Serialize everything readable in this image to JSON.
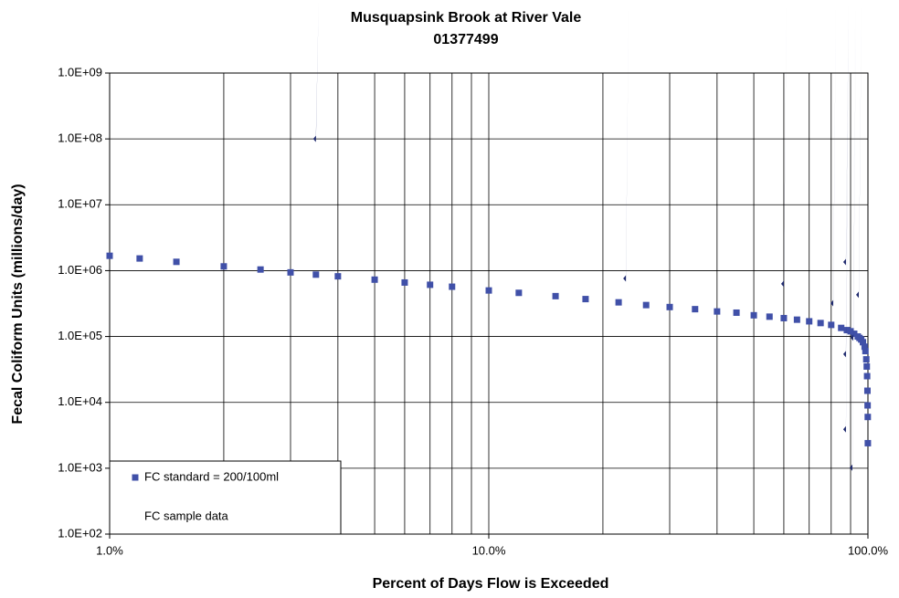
{
  "chart_data": {
    "type": "scatter",
    "title": "Musquapsink Brook at River Vale",
    "subtitle": "01377499",
    "x_label": "Percent of Days Flow is Exceeded",
    "y_label": "Fecal Coliform Units (millions/day)",
    "x_log": true,
    "y_log": true,
    "grid": true,
    "legend": "lower left",
    "xlim": [
      1,
      100
    ],
    "ylim": [
      100,
      1000000000
    ],
    "xticks": [
      {
        "value": 1,
        "label": "1.0%"
      },
      {
        "value": 10,
        "label": "10.0%"
      },
      {
        "value": 100,
        "label": "100.0%"
      }
    ],
    "yticks": [
      {
        "value": 100,
        "label": "1.0E+02"
      },
      {
        "value": 1000,
        "label": "1.0E+03"
      },
      {
        "value": 10000,
        "label": "1.0E+04"
      },
      {
        "value": 100000,
        "label": "1.0E+05"
      },
      {
        "value": 1000000,
        "label": "1.0E+06"
      },
      {
        "value": 10000000,
        "label": "1.0E+07"
      },
      {
        "value": 100000000,
        "label": "1.0E+08"
      },
      {
        "value": 1000000000,
        "label": "1.0E+09"
      }
    ],
    "series": [
      {
        "name": "FC standard = 200/100ml",
        "color": "#4050a8",
        "marker": "square",
        "x": [
          1,
          1.2,
          1.5,
          2,
          2.5,
          3,
          3.5,
          4,
          5,
          6,
          7,
          8,
          10,
          12,
          15,
          18,
          22,
          26,
          30,
          35,
          40,
          45,
          50,
          55,
          60,
          65,
          70,
          75,
          80,
          85,
          88,
          90,
          92,
          94,
          95,
          96,
          97,
          98,
          98.5,
          99,
          99.3,
          99.5,
          99.7,
          99.8,
          99.9,
          99.95
        ],
        "values": [
          1680000,
          1530000,
          1360000,
          1160000,
          1040000,
          940000,
          870000,
          820000,
          730000,
          660000,
          610000,
          570000,
          500000,
          460000,
          410000,
          370000,
          330000,
          300000,
          280000,
          260000,
          240000,
          230000,
          210000,
          200000,
          190000,
          180000,
          170000,
          160000,
          150000,
          135000,
          125000,
          120000,
          110000,
          100000,
          95000,
          90000,
          82000,
          70000,
          60000,
          45000,
          35000,
          25000,
          15000,
          9000,
          6000,
          2400
        ]
      },
      {
        "name": "FC sample data",
        "color": "#1f2a6e",
        "marker": "diamond",
        "x": [
          3.5,
          23,
          60,
          81,
          87.5,
          94.6,
          87.5,
          91.5,
          87.5,
          91
        ],
        "values": [
          100000000,
          760000,
          630000,
          320000,
          1350000,
          430000,
          54000,
          96000,
          3900,
          1020
        ]
      }
    ]
  }
}
